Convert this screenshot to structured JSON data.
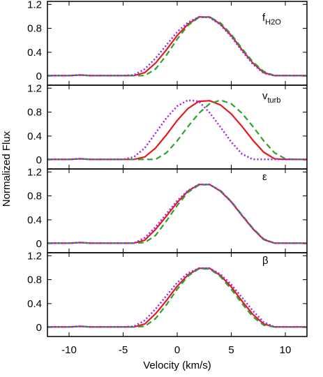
{
  "xlabel": "Velocity (km/s)",
  "ylabel": "Normalized Flux",
  "chart_data": [
    {
      "type": "line",
      "annotation": "f",
      "annotation_sub": "H2O",
      "x": [
        -12,
        -11,
        -10,
        -9,
        -8,
        -7,
        -6,
        -5,
        -4,
        -3,
        -2,
        -1,
        0,
        1,
        2,
        3,
        4,
        5,
        6,
        7,
        8,
        9,
        10,
        11,
        12
      ],
      "xlim": [
        -12,
        12
      ],
      "xticks": [
        -10,
        -5,
        0,
        5,
        10
      ],
      "show_xtick_labels": false,
      "ylim": [
        -0.15,
        1.25
      ],
      "yticks": [
        0,
        0.4,
        0.8,
        1.2
      ],
      "series": [
        {
          "color": "#e41a1c",
          "dash": "solid",
          "values": [
            0.01,
            0.01,
            0.01,
            0.02,
            0.01,
            0.01,
            0.01,
            0.01,
            0.01,
            0.06,
            0.22,
            0.44,
            0.68,
            0.87,
            0.99,
            0.99,
            0.87,
            0.68,
            0.44,
            0.22,
            0.06,
            0.01,
            0.01,
            0.01,
            0.01
          ]
        },
        {
          "color": "#2ca02c",
          "dash": "dashed",
          "values": [
            0.01,
            0.01,
            0.01,
            0.02,
            0.01,
            0.01,
            0.01,
            0.01,
            0.01,
            0.01,
            0.12,
            0.35,
            0.62,
            0.85,
            0.98,
            0.99,
            0.89,
            0.7,
            0.46,
            0.24,
            0.08,
            0.01,
            0.01,
            0.01,
            0.01
          ]
        },
        {
          "color": "#a020f0",
          "dash": "dotted",
          "values": [
            0.01,
            0.01,
            0.01,
            0.02,
            0.01,
            0.01,
            0.01,
            0.01,
            0.02,
            0.12,
            0.3,
            0.52,
            0.74,
            0.9,
            0.99,
            0.98,
            0.86,
            0.66,
            0.42,
            0.2,
            0.05,
            0.01,
            0.01,
            0.01,
            0.01
          ]
        }
      ]
    },
    {
      "type": "line",
      "annotation": "v",
      "annotation_sub": "turb",
      "x": [
        -12,
        -11,
        -10,
        -9,
        -8,
        -7,
        -6,
        -5,
        -4,
        -3,
        -2,
        -1,
        0,
        1,
        2,
        3,
        4,
        5,
        6,
        7,
        8,
        9,
        10,
        11,
        12
      ],
      "xlim": [
        -12,
        12
      ],
      "xticks": [
        -10,
        -5,
        0,
        5,
        10
      ],
      "show_xtick_labels": false,
      "ylim": [
        -0.15,
        1.25
      ],
      "yticks": [
        0,
        0.4,
        0.8,
        1.2
      ],
      "series": [
        {
          "color": "#e41a1c",
          "dash": "solid",
          "values": [
            0.01,
            0.01,
            0.01,
            0.02,
            0.01,
            0.01,
            0.01,
            0.01,
            0.01,
            0.05,
            0.2,
            0.42,
            0.66,
            0.86,
            0.98,
            0.99,
            0.92,
            0.77,
            0.56,
            0.33,
            0.13,
            0.02,
            0.01,
            0.01,
            0.01
          ]
        },
        {
          "color": "#2ca02c",
          "dash": "dashed",
          "values": [
            0.01,
            0.01,
            0.01,
            0.02,
            0.01,
            0.01,
            0.01,
            0.01,
            0.01,
            0.01,
            0.01,
            0.12,
            0.32,
            0.56,
            0.78,
            0.94,
            1.0,
            0.94,
            0.78,
            0.56,
            0.32,
            0.12,
            0.02,
            0.01,
            0.01
          ]
        },
        {
          "color": "#a020f0",
          "dash": "dotted",
          "values": [
            0.01,
            0.01,
            0.01,
            0.02,
            0.01,
            0.01,
            0.01,
            0.01,
            0.05,
            0.2,
            0.45,
            0.7,
            0.9,
            1.0,
            0.98,
            0.79,
            0.55,
            0.3,
            0.1,
            0.01,
            0.01,
            0.01,
            0.01,
            0.01,
            0.01
          ]
        }
      ]
    },
    {
      "type": "line",
      "annotation": "ε",
      "x": [
        -12,
        -11,
        -10,
        -9,
        -8,
        -7,
        -6,
        -5,
        -4,
        -3,
        -2,
        -1,
        0,
        1,
        2,
        3,
        4,
        5,
        6,
        7,
        8,
        9,
        10,
        11,
        12
      ],
      "xlim": [
        -12,
        12
      ],
      "xticks": [
        -10,
        -5,
        0,
        5,
        10
      ],
      "show_xtick_labels": false,
      "ylim": [
        -0.15,
        1.25
      ],
      "yticks": [
        0,
        0.4,
        0.8,
        1.2
      ],
      "series": [
        {
          "color": "#e41a1c",
          "dash": "solid",
          "values": [
            0.01,
            0.01,
            0.01,
            0.02,
            0.01,
            0.01,
            0.01,
            0.01,
            0.01,
            0.06,
            0.24,
            0.46,
            0.69,
            0.88,
            0.99,
            0.99,
            0.88,
            0.7,
            0.47,
            0.25,
            0.07,
            0.01,
            0.01,
            0.01,
            0.01
          ]
        },
        {
          "color": "#2ca02c",
          "dash": "dashed",
          "values": [
            0.01,
            0.01,
            0.01,
            0.02,
            0.01,
            0.01,
            0.01,
            0.01,
            0.01,
            0.02,
            0.14,
            0.38,
            0.64,
            0.86,
            0.98,
            0.99,
            0.89,
            0.71,
            0.48,
            0.26,
            0.08,
            0.01,
            0.01,
            0.01,
            0.01
          ]
        },
        {
          "color": "#a020f0",
          "dash": "dotted",
          "values": [
            0.01,
            0.01,
            0.01,
            0.02,
            0.01,
            0.01,
            0.01,
            0.01,
            0.01,
            0.1,
            0.28,
            0.5,
            0.72,
            0.89,
            0.99,
            0.99,
            0.88,
            0.7,
            0.47,
            0.25,
            0.07,
            0.01,
            0.01,
            0.01,
            0.01
          ]
        }
      ]
    },
    {
      "type": "line",
      "annotation": "β",
      "x": [
        -12,
        -11,
        -10,
        -9,
        -8,
        -7,
        -6,
        -5,
        -4,
        -3,
        -2,
        -1,
        0,
        1,
        2,
        3,
        4,
        5,
        6,
        7,
        8,
        9,
        10,
        11,
        12
      ],
      "xlim": [
        -12,
        12
      ],
      "xticks": [
        -10,
        -5,
        0,
        5,
        10
      ],
      "show_xtick_labels": true,
      "ylim": [
        -0.15,
        1.25
      ],
      "yticks": [
        0,
        0.4,
        0.8,
        1.2
      ],
      "series": [
        {
          "color": "#e41a1c",
          "dash": "solid",
          "values": [
            0.01,
            0.01,
            0.01,
            0.02,
            0.01,
            0.01,
            0.01,
            0.01,
            0.01,
            0.06,
            0.23,
            0.45,
            0.69,
            0.88,
            0.99,
            0.99,
            0.87,
            0.68,
            0.44,
            0.22,
            0.06,
            0.01,
            0.01,
            0.01,
            0.01
          ]
        },
        {
          "color": "#2ca02c",
          "dash": "dashed",
          "values": [
            0.01,
            0.01,
            0.01,
            0.02,
            0.01,
            0.01,
            0.01,
            0.01,
            0.01,
            0.02,
            0.15,
            0.38,
            0.64,
            0.86,
            0.98,
            0.98,
            0.85,
            0.64,
            0.4,
            0.18,
            0.04,
            0.01,
            0.01,
            0.01,
            0.01
          ]
        },
        {
          "color": "#a020f0",
          "dash": "dotted",
          "values": [
            0.01,
            0.01,
            0.01,
            0.02,
            0.01,
            0.01,
            0.01,
            0.01,
            0.02,
            0.12,
            0.31,
            0.53,
            0.75,
            0.91,
            0.99,
            0.99,
            0.89,
            0.72,
            0.5,
            0.28,
            0.09,
            0.01,
            0.01,
            0.01,
            0.01
          ]
        }
      ]
    }
  ]
}
